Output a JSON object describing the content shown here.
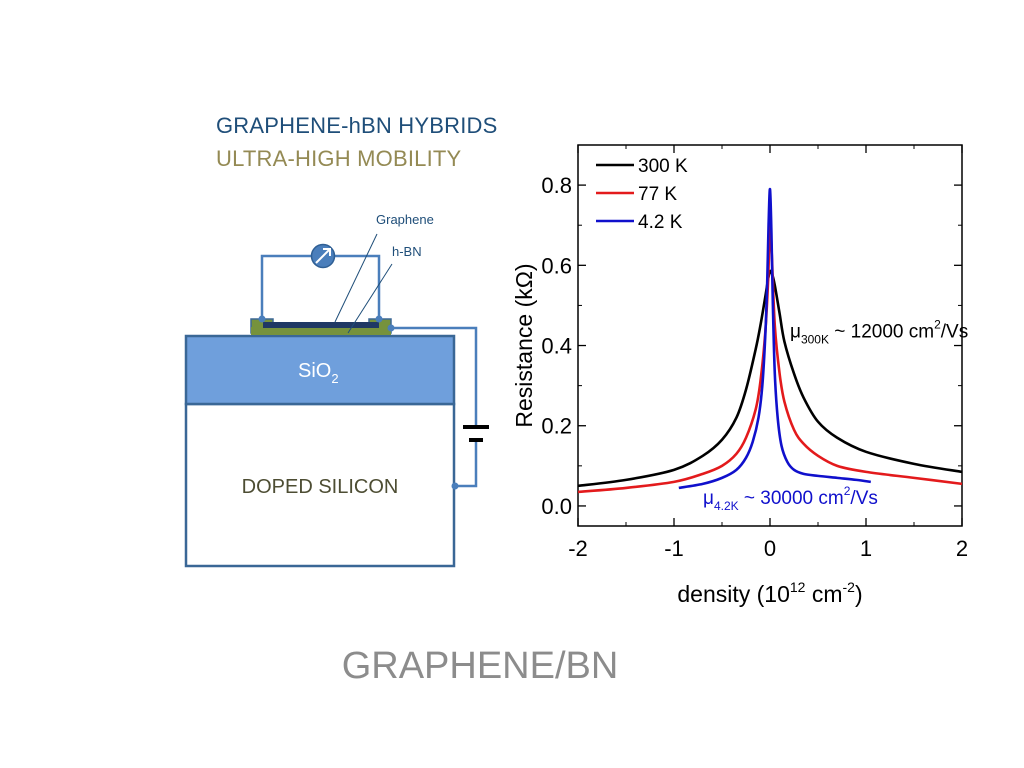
{
  "slide": {
    "heading_line1": "GRAPHENE-hBN HYBRIDS",
    "heading_line2": "ULTRA-HIGH MOBILITY",
    "footer_title": "GRAPHENE/BN",
    "colors": {
      "heading_line1": "#1f4e79",
      "heading_line2": "#948a54",
      "footer": "#8c8c8c"
    }
  },
  "diagram": {
    "label_graphene": "Graphene",
    "label_hbn": "h-BN",
    "label_sio2_main": "SiO",
    "label_sio2_sub": "2",
    "label_doped_silicon": "DOPED SILICON",
    "icons": [
      "meter-icon",
      "capacitor-icon"
    ],
    "colors": {
      "wire": "#4a7ebb",
      "sio2_fill": "#6f9fdc",
      "box_stroke": "#3a6796",
      "contact": "#76923c",
      "graphene": "#1f3864",
      "doped_text": "#4d4d33"
    }
  },
  "chart_data": {
    "type": "line",
    "title": "",
    "xlabel_main": "density (10",
    "xlabel_sup1": "12",
    "xlabel_mid": " cm",
    "xlabel_sup2": "-2",
    "xlabel_end": ")",
    "ylabel": "Resistance (kΩ)",
    "xlim": [
      -2,
      2
    ],
    "ylim": [
      -0.05,
      0.9
    ],
    "xticks": [
      -2,
      -1,
      0,
      1,
      2
    ],
    "xtick_labels": [
      "-2",
      "-1",
      "0",
      "1",
      "2"
    ],
    "yticks": [
      0.0,
      0.2,
      0.4,
      0.6,
      0.8
    ],
    "ytick_labels": [
      "0.0",
      "0.2",
      "0.4",
      "0.6",
      "0.8"
    ],
    "legend_position": "top-left",
    "legend_entries": [
      "300 K",
      "77 K",
      "4.2 K"
    ],
    "series": [
      {
        "name": "300 K",
        "color": "#000000",
        "x": [
          -2.0,
          -1.5,
          -1.0,
          -0.7,
          -0.5,
          -0.35,
          -0.25,
          -0.15,
          -0.1,
          -0.05,
          -0.02,
          0.0,
          0.02,
          0.05,
          0.1,
          0.15,
          0.25,
          0.35,
          0.5,
          0.7,
          1.0,
          1.5,
          2.0
        ],
        "y": [
          0.05,
          0.065,
          0.09,
          0.125,
          0.165,
          0.22,
          0.29,
          0.39,
          0.45,
          0.52,
          0.565,
          0.585,
          0.58,
          0.55,
          0.48,
          0.41,
          0.33,
          0.27,
          0.21,
          0.17,
          0.135,
          0.105,
          0.085
        ]
      },
      {
        "name": "77 K",
        "color": "#e31a1c",
        "x": [
          -2.0,
          -1.5,
          -1.0,
          -0.7,
          -0.5,
          -0.35,
          -0.25,
          -0.15,
          -0.1,
          -0.05,
          -0.02,
          0.0,
          0.02,
          0.05,
          0.1,
          0.15,
          0.25,
          0.35,
          0.5,
          0.7,
          1.0,
          1.5,
          2.0
        ],
        "y": [
          0.035,
          0.045,
          0.06,
          0.08,
          0.1,
          0.13,
          0.17,
          0.24,
          0.31,
          0.43,
          0.56,
          0.7,
          0.62,
          0.45,
          0.33,
          0.26,
          0.19,
          0.155,
          0.125,
          0.1,
          0.085,
          0.07,
          0.055
        ]
      },
      {
        "name": "4.2 K",
        "color": "#1010cc",
        "x": [
          -0.95,
          -0.7,
          -0.5,
          -0.35,
          -0.25,
          -0.18,
          -0.12,
          -0.08,
          -0.05,
          -0.03,
          -0.015,
          0.0,
          0.015,
          0.03,
          0.05,
          0.08,
          0.12,
          0.18,
          0.25,
          0.35,
          0.5,
          0.7,
          0.9,
          1.05
        ],
        "y": [
          0.045,
          0.055,
          0.07,
          0.09,
          0.12,
          0.16,
          0.22,
          0.3,
          0.42,
          0.55,
          0.7,
          0.79,
          0.68,
          0.5,
          0.33,
          0.22,
          0.15,
          0.11,
          0.09,
          0.08,
          0.075,
          0.07,
          0.065,
          0.06
        ]
      }
    ],
    "annotations": [
      {
        "main": "μ",
        "sub": "300K",
        "text": " ~ 12000 cm",
        "sup": "2",
        "tail": "/Vs",
        "color": "#000000"
      },
      {
        "main": "μ",
        "sub": "4.2K",
        "text": " ~ 30000 cm",
        "sup": "2",
        "tail": "/Vs",
        "color": "#1010cc"
      }
    ]
  }
}
